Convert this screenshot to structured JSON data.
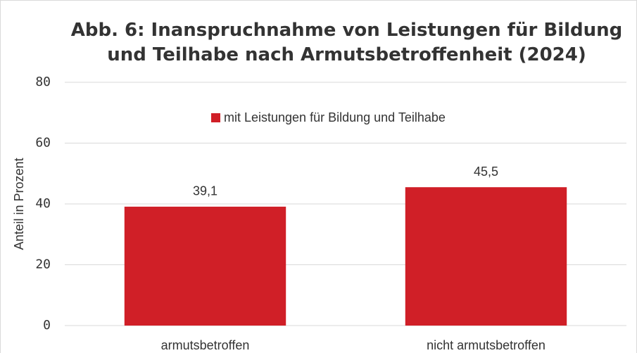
{
  "chart_data": {
    "type": "bar",
    "title": "Abb. 6: Inanspruchnahme von Leistungen für Bildung und Teilhabe nach Armutsbetroffenheit (2024)",
    "ylabel": "Anteil in Prozent",
    "categories": [
      "armutsbetroffen",
      "nicht armutsbetroffen"
    ],
    "series": [
      {
        "name": "mit Leistungen für Bildung und Teilhabe",
        "color": "#d01f27",
        "values": [
          39.1,
          45.5
        ],
        "value_labels": [
          "39,1",
          "45,5"
        ]
      }
    ],
    "ylim": [
      0,
      80
    ],
    "yticks": [
      0,
      20,
      40,
      60,
      80
    ],
    "grid": true,
    "legend": "top"
  }
}
